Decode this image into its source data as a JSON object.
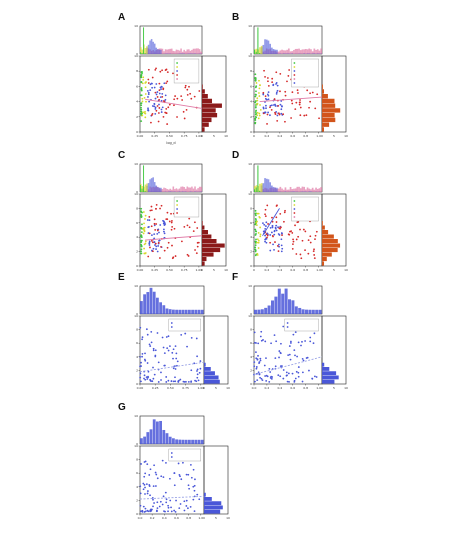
{
  "colors": {
    "green": "#3fc93f",
    "yellow": "#d8d82e",
    "blue": "#4a57d8",
    "pink": "#e07aa6",
    "red": "#d52a2a",
    "darkred": "#8b1a1a",
    "orange": "#d2551b",
    "axis": "#222222"
  },
  "chart_data": [
    {
      "letter": "A",
      "type": "scatter",
      "style": "multi",
      "marg_right_color": "#8b1a1a",
      "xlim": [
        0,
        1.2
      ],
      "ylim": [
        0,
        10
      ],
      "x_ticks": [
        "0.00",
        "0.25",
        "0.50",
        "0.75",
        "1.00"
      ],
      "y_ticks": [
        "0",
        "2",
        "4",
        "6",
        "8",
        "10"
      ],
      "top_y_ticks": [
        "0",
        "10"
      ],
      "right_x_ticks": [
        "0",
        "5",
        "10"
      ],
      "xlabel": "log_d",
      "ylabel": "",
      "top_ylabel": "",
      "right_xlabel": "",
      "legend": [
        "",
        "",
        "",
        "",
        ""
      ],
      "fit": {
        "x0": 0.1,
        "y0": 4.3,
        "x1": 1.2,
        "y1": 3.1,
        "color": "#e07aa6"
      }
    },
    {
      "letter": "B",
      "type": "scatter",
      "style": "multi",
      "marg_right_color": "#d2551b",
      "xlim": [
        0,
        1.2
      ],
      "ylim": [
        0,
        10
      ],
      "x_ticks": [
        "0",
        "0.2",
        "0.4",
        "0.6",
        "0.8",
        "1.0"
      ],
      "y_ticks": [
        "0",
        "2",
        "4",
        "6",
        "8",
        "10"
      ],
      "top_y_ticks": [
        "0",
        "10"
      ],
      "right_x_ticks": [
        "0",
        "5",
        "10"
      ],
      "xlabel": "",
      "ylabel": "",
      "top_ylabel": "",
      "right_xlabel": "",
      "legend": [
        "",
        "",
        "",
        "",
        "",
        ""
      ],
      "fit": {
        "x0": 0.1,
        "y0": 4.0,
        "x1": 1.2,
        "y1": 4.6,
        "color": "#e07aa6"
      }
    },
    {
      "letter": "C",
      "type": "scatter",
      "style": "multi",
      "marg_right_color": "#8b1a1a",
      "xlim": [
        0,
        1.2
      ],
      "ylim": [
        0,
        10
      ],
      "x_ticks": [
        "0.00",
        "0.25",
        "0.50",
        "0.75",
        "1.00"
      ],
      "y_ticks": [
        "0",
        "2",
        "4",
        "6",
        "8",
        "10"
      ],
      "top_y_ticks": [
        "0",
        "10"
      ],
      "right_x_ticks": [
        "0",
        "5",
        "10"
      ],
      "xlabel": "",
      "ylabel": "",
      "top_ylabel": "",
      "right_xlabel": "",
      "legend": [
        "",
        "",
        "",
        ""
      ],
      "fit": {
        "x0": 0.1,
        "y0": 3.6,
        "x1": 1.2,
        "y1": 4.2,
        "color": "#e07aa6"
      }
    },
    {
      "letter": "D",
      "type": "scatter",
      "style": "multi",
      "marg_right_color": "#d2551b",
      "xlim": [
        0,
        1.2
      ],
      "ylim": [
        0,
        10
      ],
      "x_ticks": [
        "0",
        "0.2",
        "0.4",
        "0.6",
        "0.8",
        "1.0"
      ],
      "y_ticks": [
        "0",
        "2",
        "4",
        "6",
        "8",
        "10"
      ],
      "top_y_ticks": [
        "0",
        "10"
      ],
      "right_x_ticks": [
        "0",
        "5",
        "10"
      ],
      "xlabel": "",
      "ylabel": "",
      "top_ylabel": "",
      "right_xlabel": "",
      "legend": [
        "",
        "",
        "",
        "",
        ""
      ],
      "fit": {
        "x0": 0.15,
        "y0": 4.2,
        "x1": 0.45,
        "y1": 8.0,
        "color": "#4a57d8"
      }
    },
    {
      "letter": "E",
      "type": "scatter",
      "style": "blue",
      "marg_right_color": "#4a57d8",
      "xlim": [
        0,
        1.0
      ],
      "ylim": [
        0,
        10
      ],
      "x_ticks": [
        "0.00",
        "0.25",
        "0.50",
        "0.75",
        "1.00"
      ],
      "y_ticks": [
        "0",
        "2",
        "4",
        "6",
        "8",
        "10"
      ],
      "top_y_ticks": [
        "0",
        "10"
      ],
      "right_x_ticks": [
        "0",
        "5",
        "10"
      ],
      "xlabel": "",
      "ylabel": "",
      "top_ylabel": "",
      "right_xlabel": "",
      "legend": [
        "",
        ""
      ],
      "fit": {
        "x0": 0.0,
        "y0": 1.8,
        "x1": 1.0,
        "y1": 3.2,
        "color": "#9aa3e6"
      }
    },
    {
      "letter": "F",
      "type": "scatter",
      "style": "blue",
      "marg_right_color": "#4a57d8",
      "xlim": [
        0,
        1.0
      ],
      "ylim": [
        0,
        10
      ],
      "x_ticks": [
        "0.0",
        "0.2",
        "0.4",
        "0.6",
        "0.8",
        "1.0"
      ],
      "y_ticks": [
        "0",
        "2",
        "4",
        "6",
        "8",
        "10"
      ],
      "top_y_ticks": [
        "0",
        "10"
      ],
      "right_x_ticks": [
        "0",
        "5",
        "10"
      ],
      "xlabel": "",
      "ylabel": "",
      "top_ylabel": "",
      "right_xlabel": "",
      "legend": [
        "",
        ""
      ],
      "fit": {
        "x0": 0.0,
        "y0": 1.4,
        "x1": 1.0,
        "y1": 4.0,
        "color": "#9aa3e6"
      }
    },
    {
      "letter": "G",
      "type": "scatter",
      "style": "blue",
      "marg_right_color": "#4a57d8",
      "xlim": [
        0,
        1.0
      ],
      "ylim": [
        0,
        10
      ],
      "x_ticks": [
        "0.0",
        "0.2",
        "0.4",
        "0.6",
        "0.8",
        "1.0"
      ],
      "y_ticks": [
        "0",
        "2",
        "4",
        "6",
        "8",
        "10"
      ],
      "top_y_ticks": [
        "0",
        "10"
      ],
      "right_x_ticks": [
        "0",
        "5",
        "10"
      ],
      "xlabel": "",
      "ylabel": "",
      "top_ylabel": "",
      "right_xlabel": "",
      "legend": [
        "",
        ""
      ],
      "fit": {
        "x0": 0.0,
        "y0": 2.2,
        "x1": 1.0,
        "y1": 2.6,
        "color": "#9aa3e6"
      }
    }
  ]
}
